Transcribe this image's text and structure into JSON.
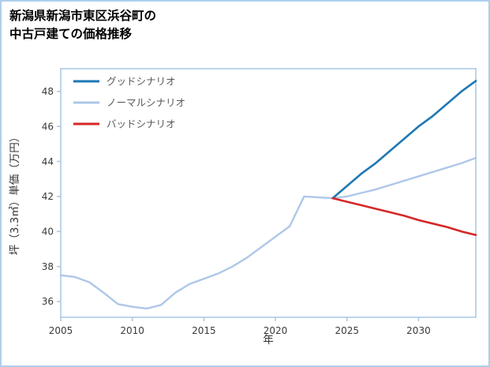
{
  "title_line1": "新潟県新潟市東区浜谷町の",
  "title_line2": "中古戸建ての価格推移",
  "colors": {
    "frame_border": "#aecfec",
    "spine": "#abc9e8",
    "tick_label": "#3a3a3a",
    "axis_label": "#333333",
    "legend_text": "#595959",
    "background": "#ffffff"
  },
  "chart_data": {
    "type": "line",
    "title": "新潟県新潟市東区浜谷町の中古戸建ての価格推移",
    "xlabel": "年",
    "ylabel": "坪（3.3㎡）単価（万円）",
    "xlim": [
      2005,
      2034
    ],
    "ylim": [
      35.1,
      49.3
    ],
    "xticks": [
      2005,
      2010,
      2015,
      2020,
      2025,
      2030
    ],
    "yticks": [
      36,
      38,
      40,
      42,
      44,
      46,
      48
    ],
    "grid": false,
    "legend_position": "upper-left",
    "draw_order": [
      1,
      0,
      2
    ],
    "series": [
      {
        "name": "グッドシナリオ",
        "color": "#1f77b4",
        "width": 2.6,
        "x": [
          2024,
          2025,
          2026,
          2027,
          2028,
          2029,
          2030,
          2031,
          2032,
          2033,
          2034
        ],
        "y": [
          41.9,
          42.6,
          43.3,
          43.9,
          44.6,
          45.3,
          46.0,
          46.6,
          47.3,
          48.0,
          48.6
        ]
      },
      {
        "name": "ノーマルシナリオ",
        "color": "#aec7e8",
        "width": 2.4,
        "x": [
          2005,
          2006,
          2007,
          2008,
          2009,
          2010,
          2011,
          2012,
          2013,
          2014,
          2015,
          2016,
          2017,
          2018,
          2019,
          2020,
          2021,
          2022,
          2023,
          2024,
          2025,
          2026,
          2027,
          2028,
          2029,
          2030,
          2031,
          2032,
          2033,
          2034
        ],
        "y": [
          37.5,
          37.4,
          37.1,
          36.5,
          35.85,
          35.7,
          35.6,
          35.8,
          36.5,
          37.0,
          37.3,
          37.6,
          38.0,
          38.5,
          39.1,
          39.7,
          40.3,
          42.0,
          41.95,
          41.9,
          42.0,
          42.2,
          42.4,
          42.65,
          42.9,
          43.15,
          43.4,
          43.65,
          43.9,
          44.2
        ]
      },
      {
        "name": "バッドシナリオ",
        "color": "#d62728",
        "width": 2.6,
        "x": [
          2024,
          2025,
          2026,
          2027,
          2028,
          2029,
          2030,
          2031,
          2032,
          2033,
          2034
        ],
        "y": [
          41.9,
          41.7,
          41.5,
          41.3,
          41.1,
          40.9,
          40.65,
          40.45,
          40.25,
          40.0,
          39.8
        ]
      }
    ]
  }
}
